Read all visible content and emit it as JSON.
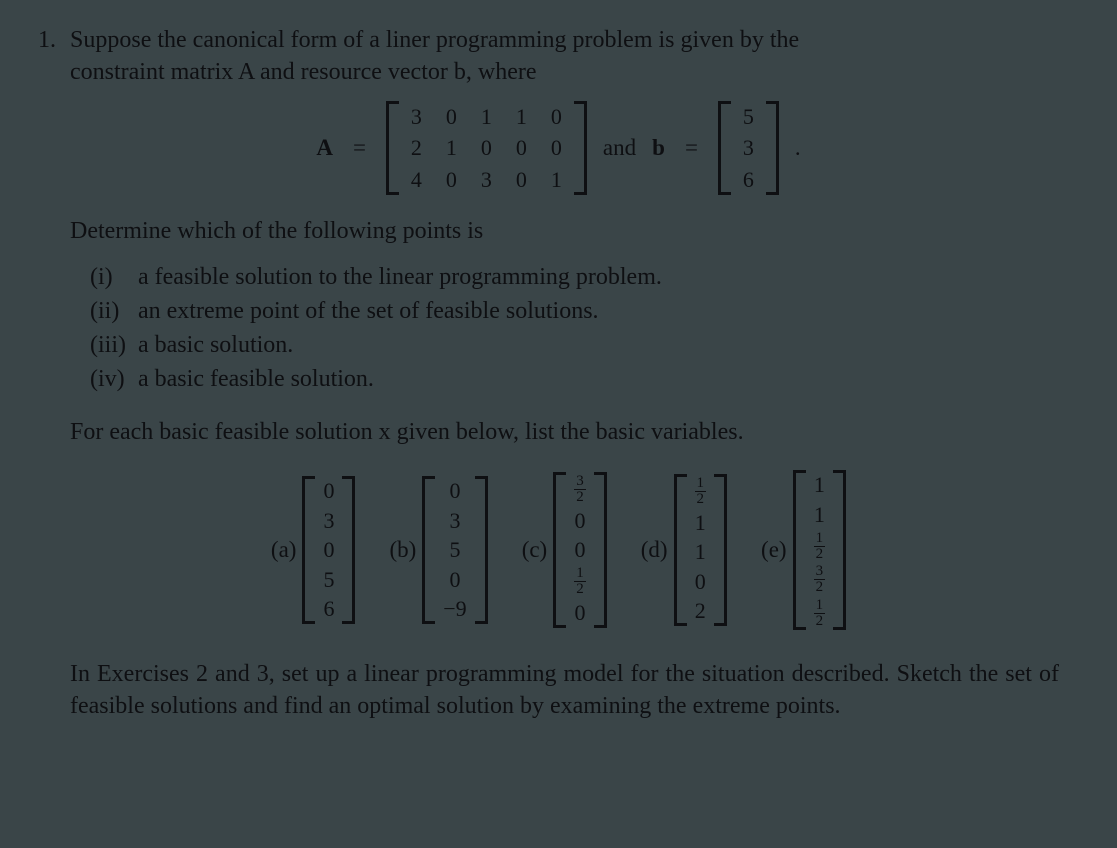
{
  "problem": {
    "number": "1.",
    "intro_line1": "Suppose the canonical form of a liner programming problem is given by the",
    "intro_line2": "constraint matrix A and resource vector b, where"
  },
  "matrix": {
    "A_label": "A",
    "eq": "=",
    "A_rows": [
      [
        "3",
        "0",
        "1",
        "1",
        "0"
      ],
      [
        "2",
        "1",
        "0",
        "0",
        "0"
      ],
      [
        "4",
        "0",
        "3",
        "0",
        "1"
      ]
    ],
    "and_text": "and",
    "b_label": "b",
    "b_rows": [
      [
        "5"
      ],
      [
        "3"
      ],
      [
        "6"
      ]
    ],
    "period": "."
  },
  "determine_text": "Determine which of the following points is",
  "items": [
    {
      "roman": "(i)",
      "text": "a feasible solution to the linear programming problem."
    },
    {
      "roman": "(ii)",
      "text": "an extreme point of the set of feasible solutions."
    },
    {
      "roman": "(iii)",
      "text": "a basic solution."
    },
    {
      "roman": "(iv)",
      "text": "a basic feasible solution."
    }
  ],
  "bfs_instruction": "For each basic feasible solution x given below, list the basic variables.",
  "options": {
    "a": {
      "label": "(a)",
      "values": [
        "0",
        "3",
        "0",
        "5",
        "6"
      ]
    },
    "b": {
      "label": "(b)",
      "values": [
        "0",
        "3",
        "5",
        "0",
        "-9"
      ]
    },
    "c": {
      "label": "(c)",
      "values": [
        "3/2",
        "0",
        "0",
        "1/2",
        "0"
      ]
    },
    "d": {
      "label": "(d)",
      "values": [
        "1/2",
        "1",
        "1",
        "0",
        "2"
      ]
    },
    "e": {
      "label": "(e)",
      "values": [
        "1",
        "1",
        "1/2",
        "3/2",
        "1/2"
      ]
    }
  },
  "closing": {
    "line": "In Exercises 2 and 3, set up a linear programming model for the situation described. Sketch the set of feasible solutions and find an optimal solution by examining the extreme points."
  },
  "style": {
    "background_color": "#3a4548",
    "text_color": "#0e0f12",
    "font_family": "Times New Roman",
    "body_fontsize": 24,
    "matrix_fontsize": 22,
    "fraction_fontsize": 15
  }
}
